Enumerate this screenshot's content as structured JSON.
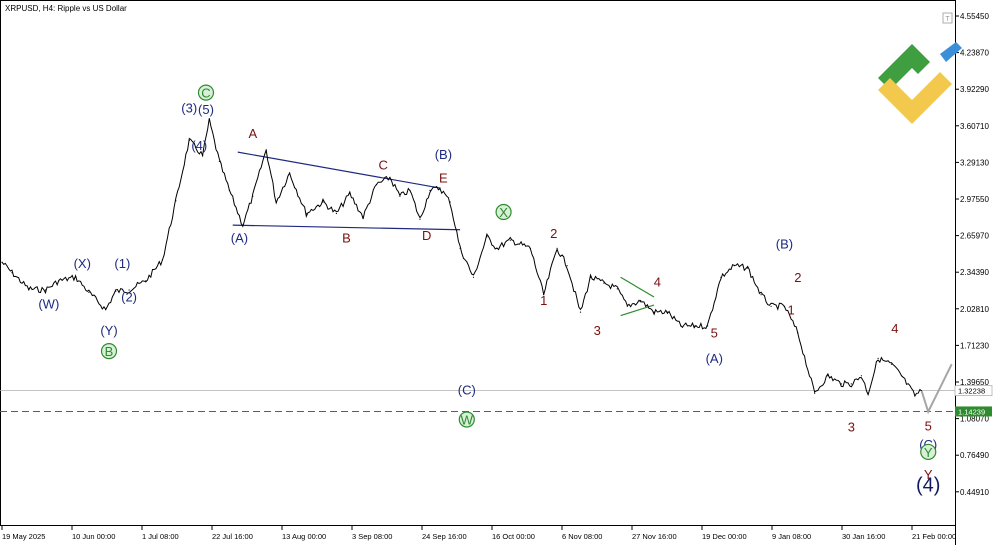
{
  "header": {
    "title": "XRPUSD, H4:  Ripple vs US Dollar"
  },
  "colors": {
    "candle": "#000000",
    "wave_blue": "#1e2a80",
    "wave_red": "#7a1010",
    "wave_green": "#2e8b2e",
    "channel": "#1e2a80",
    "triangle": "#2e8b2e",
    "support": "#2e7d32",
    "forecast": "#a6a6a6",
    "price_box": "#ffffff",
    "support_box": "#2e8b2e",
    "logo_green": "#3f9e3f",
    "logo_yellow": "#f2c94c",
    "logo_blue": "#3b8fd9"
  },
  "chart_data": {
    "type": "line",
    "symbol": "XRPUSD",
    "timeframe": "H4",
    "y_axis": {
      "ticks": [
        "4.55450",
        "4.23870",
        "3.92290",
        "3.60710",
        "3.29130",
        "2.97550",
        "2.65970",
        "2.34390",
        "2.02810",
        "1.71230",
        "1.39650",
        "1.08070",
        "0.76490",
        "0.44910"
      ],
      "range": [
        0.3,
        4.65
      ]
    },
    "x_axis": {
      "ticks": [
        "19 May 2025",
        "10 Jun 00:00",
        "1 Jul 08:00",
        "22 Jul 16:00",
        "13 Aug 00:00",
        "3 Sep 08:00",
        "24 Sep 16:00",
        "16 Oct 00:00",
        "6 Nov 08:00",
        "27 Nov 16:00",
        "19 Dec 00:00",
        "9 Jan 08:00",
        "30 Jan 16:00",
        "21 Feb 00:00"
      ]
    },
    "price_levels": {
      "current": {
        "label": "1.32238",
        "value": 1.32238
      },
      "support": {
        "label": "1.14239",
        "value": 1.14239
      }
    },
    "series": [
      {
        "x": [
          "19 May 2025",
          "22 May",
          "27 May",
          "1 Jun",
          "5 Jun",
          "10 Jun",
          "14 Jun",
          "19 Jun",
          "22 Jun",
          "26 Jun",
          "1 Jul",
          "6 Jul",
          "10 Jul",
          "14 Jul",
          "18 Jul",
          "20 Jul",
          "23 Jul",
          "26 Jul",
          "30 Jul",
          "2 Aug",
          "6 Aug",
          "9 Aug",
          "13 Aug",
          "18 Aug",
          "23 Aug",
          "27 Aug",
          "31 Aug",
          "4 Sep",
          "8 Sep",
          "12 Sep",
          "15 Sep",
          "18 Sep",
          "21 Sep",
          "24 Sep",
          "27 Sep",
          "30 Sep",
          "3 Oct",
          "7 Oct",
          "11 Oct",
          "14 Oct",
          "18 Oct",
          "24 Oct",
          "28 Oct",
          "1 Nov",
          "4 Nov",
          "8 Nov",
          "11 Nov",
          "15 Nov",
          "19 Nov",
          "22 Nov",
          "26 Nov",
          "30 Nov",
          "4 Dec",
          "8 Dec",
          "12 Dec",
          "16 Dec",
          "20 Dec",
          "24 Dec",
          "28 Dec",
          "1 Jan",
          "4 Jan",
          "8 Jan",
          "12 Jan",
          "17 Jan",
          "21 Jan",
          "25 Jan",
          "28 Jan",
          "31 Jan",
          "2 Feb",
          "5 Feb",
          "9 Feb",
          "12 Feb",
          "16 Feb",
          "18 Feb"
        ],
        "values": [
          2.43,
          2.34,
          2.2,
          2.19,
          2.27,
          2.3,
          2.17,
          2.02,
          2.18,
          2.19,
          2.27,
          2.45,
          2.96,
          3.48,
          3.35,
          3.65,
          3.3,
          3.05,
          2.75,
          3.0,
          3.4,
          2.95,
          3.2,
          2.85,
          2.95,
          2.85,
          3.02,
          2.82,
          3.1,
          3.16,
          3.0,
          3.05,
          2.8,
          3.05,
          3.07,
          2.95,
          2.55,
          2.3,
          2.65,
          2.55,
          2.62,
          2.55,
          2.15,
          2.55,
          2.4,
          2.0,
          2.3,
          2.25,
          2.2,
          2.05,
          2.1,
          2.0,
          2.0,
          1.88,
          1.88,
          1.88,
          2.3,
          2.4,
          2.38,
          2.15,
          2.05,
          2.05,
          1.82,
          1.3,
          1.45,
          1.38,
          1.38,
          1.45,
          1.3,
          1.6,
          1.55,
          1.45,
          1.28,
          1.32
        ]
      }
    ],
    "forecast_path": {
      "x": [
        "18 Feb",
        "20 Feb",
        "27 Feb"
      ],
      "values": [
        1.32,
        1.14,
        1.55
      ]
    },
    "annotations": [
      {
        "text": "(W)",
        "x": "2 Jun",
        "y": 2.03,
        "color": "blue"
      },
      {
        "text": "(X)",
        "x": "12 Jun",
        "y": 2.38,
        "color": "blue"
      },
      {
        "text": "(Y)",
        "x": "20 Jun",
        "y": 1.8,
        "color": "blue"
      },
      {
        "text": "B",
        "x": "20 Jun",
        "y": 1.62,
        "color": "green",
        "circle": true
      },
      {
        "text": "(1)",
        "x": "24 Jun",
        "y": 2.38,
        "color": "blue"
      },
      {
        "text": "(2)",
        "x": "26 Jun",
        "y": 2.09,
        "color": "blue"
      },
      {
        "text": "(3)",
        "x": "14 Jul",
        "y": 3.72,
        "color": "blue"
      },
      {
        "text": "(4)",
        "x": "17 Jul",
        "y": 3.4,
        "color": "blue"
      },
      {
        "text": "(5)",
        "x": "19 Jul",
        "y": 3.71,
        "color": "blue"
      },
      {
        "text": "C",
        "x": "19 Jul",
        "y": 3.85,
        "color": "green",
        "circle": true
      },
      {
        "text": "(A)",
        "x": "29 Jul",
        "y": 2.6,
        "color": "blue"
      },
      {
        "text": "A",
        "x": "2 Aug",
        "y": 3.5,
        "color": "red"
      },
      {
        "text": "B",
        "x": "30 Aug",
        "y": 2.6,
        "color": "red"
      },
      {
        "text": "C",
        "x": "10 Sep",
        "y": 3.23,
        "color": "red"
      },
      {
        "text": "D",
        "x": "23 Sep",
        "y": 2.62,
        "color": "red"
      },
      {
        "text": "(B)",
        "x": "28 Sep",
        "y": 3.32,
        "color": "blue"
      },
      {
        "text": "E",
        "x": "28 Sep",
        "y": 3.12,
        "color": "red"
      },
      {
        "text": "(C)",
        "x": "5 Oct",
        "y": 1.29,
        "color": "blue"
      },
      {
        "text": "W",
        "x": "5 Oct",
        "y": 1.03,
        "color": "green",
        "circle": true
      },
      {
        "text": "X",
        "x": "16 Oct",
        "y": 2.82,
        "color": "green",
        "circle": true
      },
      {
        "text": "2",
        "x": "31 Oct",
        "y": 2.64,
        "color": "red"
      },
      {
        "text": "1",
        "x": "28 Oct",
        "y": 2.06,
        "color": "red"
      },
      {
        "text": "3",
        "x": "13 Nov",
        "y": 1.8,
        "color": "red"
      },
      {
        "text": "4",
        "x": "1 Dec",
        "y": 2.22,
        "color": "red"
      },
      {
        "text": "5",
        "x": "18 Dec",
        "y": 1.78,
        "color": "red"
      },
      {
        "text": "(A)",
        "x": "18 Dec",
        "y": 1.56,
        "color": "blue"
      },
      {
        "text": "(B)",
        "x": "8 Jan",
        "y": 2.55,
        "color": "blue"
      },
      {
        "text": "2",
        "x": "12 Jan",
        "y": 2.26,
        "color": "red"
      },
      {
        "text": "1",
        "x": "10 Jan",
        "y": 1.98,
        "color": "red"
      },
      {
        "text": "3",
        "x": "28 Jan",
        "y": 0.97,
        "color": "red"
      },
      {
        "text": "4",
        "x": "10 Feb",
        "y": 1.82,
        "color": "red"
      },
      {
        "text": "5",
        "x": "20 Feb",
        "y": 0.98,
        "color": "red"
      },
      {
        "text": "(C)",
        "x": "20 Feb",
        "y": 0.82,
        "color": "blue"
      },
      {
        "text": "Y",
        "x": "20 Feb",
        "y": 0.75,
        "color": "green",
        "circle": true
      },
      {
        "text": "Y",
        "x": "20 Feb",
        "y": 0.56,
        "color": "red"
      },
      {
        "text": "(4)",
        "x": "20 Feb",
        "y": 0.45,
        "color": "navy",
        "big": true
      }
    ],
    "xlabel": "",
    "ylabel": "",
    "grid": false
  }
}
